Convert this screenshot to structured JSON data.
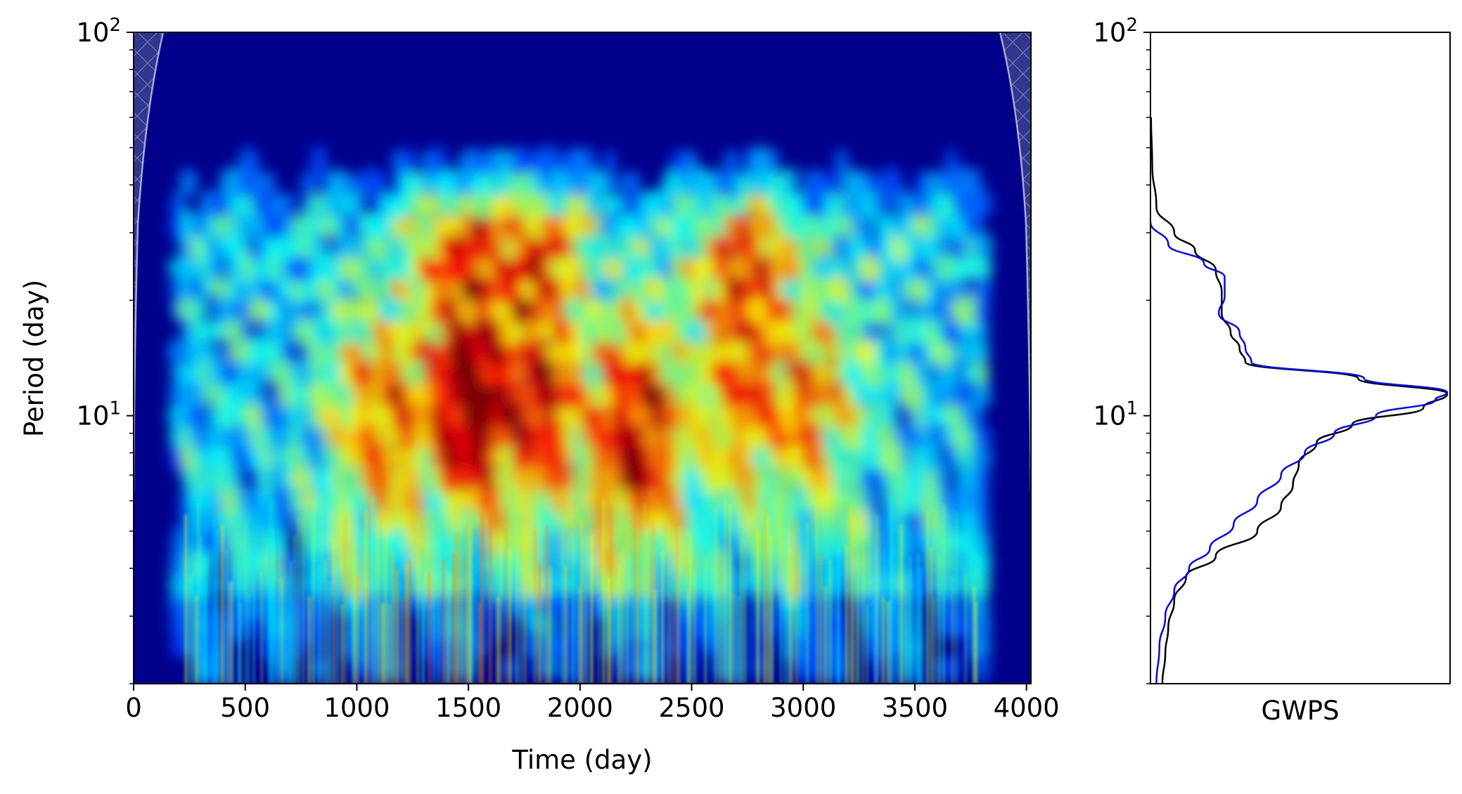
{
  "chart_data": [
    {
      "type": "heatmap",
      "title": "",
      "xlabel": "Time (day)",
      "ylabel": "Period (day)",
      "xlim": [
        0,
        4020
      ],
      "ylim": [
        2,
        100
      ],
      "yscale": "log",
      "colormap": "jet",
      "x_ticks": [
        0,
        500,
        1000,
        1500,
        2000,
        2500,
        3000,
        3500,
        4000
      ],
      "x_tick_labels": [
        "0",
        "500",
        "1000",
        "1500",
        "2000",
        "2500",
        "3000",
        "3500",
        "4000"
      ],
      "y_ticks": [
        10,
        100
      ],
      "y_tick_labels": [
        {
          "base": "10",
          "exp": "1"
        },
        {
          "base": "10",
          "exp": "2"
        }
      ],
      "cone_of_influence": "hatched light region at left and right edges",
      "hotspots": [
        {
          "time": 1530,
          "period": 11.5,
          "power": 1.0
        },
        {
          "time": 1520,
          "period": 23,
          "power": 0.72
        },
        {
          "time": 1780,
          "period": 24,
          "power": 0.7
        },
        {
          "time": 1800,
          "period": 11,
          "power": 0.78
        },
        {
          "time": 2250,
          "period": 9,
          "power": 0.8
        },
        {
          "time": 2750,
          "period": 21,
          "power": 0.68
        },
        {
          "time": 2760,
          "period": 12,
          "power": 0.6
        },
        {
          "time": 1150,
          "period": 10,
          "power": 0.6
        },
        {
          "time": 3000,
          "period": 11,
          "power": 0.55
        }
      ]
    },
    {
      "type": "line",
      "title": "",
      "xlabel": "GWPS",
      "ylabel": "",
      "yscale": "log",
      "ylim": [
        2,
        100
      ],
      "y_ticks": [
        10,
        100
      ],
      "y_tick_labels": [
        {
          "base": "10",
          "exp": "1"
        },
        {
          "base": "10",
          "exp": "2"
        }
      ],
      "series": [
        {
          "color": "#000000",
          "points": [
            {
              "period": 2.0,
              "power": 0.04
            },
            {
              "period": 2.4,
              "power": 0.05
            },
            {
              "period": 2.8,
              "power": 0.06
            },
            {
              "period": 3.3,
              "power": 0.08
            },
            {
              "period": 3.8,
              "power": 0.12
            },
            {
              "period": 4.3,
              "power": 0.22
            },
            {
              "period": 5.0,
              "power": 0.36
            },
            {
              "period": 5.8,
              "power": 0.44
            },
            {
              "period": 6.6,
              "power": 0.48
            },
            {
              "period": 7.5,
              "power": 0.5
            },
            {
              "period": 8.5,
              "power": 0.56
            },
            {
              "period": 9.5,
              "power": 0.68
            },
            {
              "period": 10.5,
              "power": 0.92
            },
            {
              "period": 11.4,
              "power": 1.0
            },
            {
              "period": 12.5,
              "power": 0.7
            },
            {
              "period": 13.8,
              "power": 0.32
            },
            {
              "period": 15.0,
              "power": 0.3
            },
            {
              "period": 16.5,
              "power": 0.27
            },
            {
              "period": 18.5,
              "power": 0.24
            },
            {
              "period": 21.0,
              "power": 0.24
            },
            {
              "period": 24.0,
              "power": 0.22
            },
            {
              "period": 27.0,
              "power": 0.15
            },
            {
              "period": 30.0,
              "power": 0.08
            },
            {
              "period": 35.0,
              "power": 0.02
            },
            {
              "period": 45.0,
              "power": 0.006
            },
            {
              "period": 60.0,
              "power": 0.002
            }
          ]
        },
        {
          "color": "#0a0ad8",
          "points": [
            {
              "period": 2.0,
              "power": 0.02
            },
            {
              "period": 2.5,
              "power": 0.03
            },
            {
              "period": 3.0,
              "power": 0.05
            },
            {
              "period": 3.5,
              "power": 0.08
            },
            {
              "period": 4.0,
              "power": 0.13
            },
            {
              "period": 4.5,
              "power": 0.2
            },
            {
              "period": 5.2,
              "power": 0.28
            },
            {
              "period": 6.0,
              "power": 0.36
            },
            {
              "period": 7.0,
              "power": 0.44
            },
            {
              "period": 8.0,
              "power": 0.52
            },
            {
              "period": 9.0,
              "power": 0.62
            },
            {
              "period": 10.0,
              "power": 0.76
            },
            {
              "period": 11.0,
              "power": 0.96
            },
            {
              "period": 11.5,
              "power": 1.0
            },
            {
              "period": 12.5,
              "power": 0.72
            },
            {
              "period": 13.8,
              "power": 0.34
            },
            {
              "period": 15.0,
              "power": 0.32
            },
            {
              "period": 16.5,
              "power": 0.3
            },
            {
              "period": 18.5,
              "power": 0.23
            },
            {
              "period": 20.5,
              "power": 0.25
            },
            {
              "period": 23.0,
              "power": 0.25
            },
            {
              "period": 25.0,
              "power": 0.18
            },
            {
              "period": 28.0,
              "power": 0.06
            },
            {
              "period": 32.0,
              "power": 0.0
            }
          ]
        }
      ]
    }
  ]
}
